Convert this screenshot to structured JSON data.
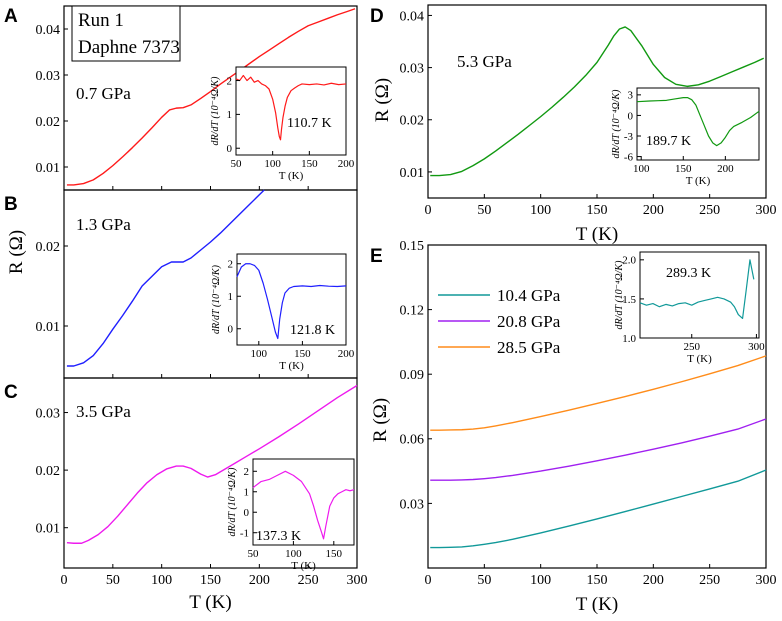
{
  "chart_data": [
    {
      "panel": "A",
      "type": "line",
      "color": "#ff1a1a",
      "legend": [
        "Run 1",
        "Daphne 7373"
      ],
      "pressure": "0.7 GPa",
      "xlim": [
        0,
        300
      ],
      "ylim": [
        0.005,
        0.045
      ],
      "yticks": [
        0.01,
        0.02,
        0.03,
        0.04
      ],
      "ytick_labels": [
        "0.01",
        "0.02",
        "0.03",
        "0.04"
      ],
      "x": [
        3,
        10,
        20,
        30,
        40,
        50,
        60,
        70,
        80,
        90,
        100,
        108,
        115,
        122,
        130,
        140,
        150,
        160,
        170,
        180,
        190,
        200,
        210,
        220,
        230,
        240,
        250,
        260,
        270,
        280,
        290,
        298
      ],
      "y": [
        0.0061,
        0.0061,
        0.0064,
        0.0072,
        0.0086,
        0.0103,
        0.0122,
        0.0142,
        0.0163,
        0.0185,
        0.0208,
        0.0224,
        0.0228,
        0.0229,
        0.0235,
        0.0249,
        0.0264,
        0.028,
        0.0295,
        0.031,
        0.0325,
        0.034,
        0.0354,
        0.0368,
        0.0382,
        0.0395,
        0.0407,
        0.0415,
        0.0423,
        0.0431,
        0.0438,
        0.0444
      ],
      "inset": {
        "xlim": [
          50,
          200
        ],
        "ylim": [
          -0.2,
          2.4
        ],
        "xticks": [
          50,
          100,
          150,
          200
        ],
        "yticks": [
          0,
          1,
          2
        ],
        "xtick_labels": [
          "50",
          "100",
          "150",
          "200"
        ],
        "ytick_labels": [
          "0",
          "1",
          "2"
        ],
        "x": [
          50,
          55,
          60,
          65,
          70,
          75,
          80,
          85,
          90,
          95,
          100,
          104,
          107,
          109,
          110.7,
          112,
          114,
          117,
          120,
          125,
          130,
          135,
          140,
          150,
          160,
          170,
          180,
          190,
          200
        ],
        "y": [
          2.05,
          2.0,
          2.15,
          2.0,
          2.1,
          1.95,
          2.0,
          1.9,
          1.85,
          1.75,
          1.45,
          1.05,
          0.6,
          0.35,
          0.25,
          0.55,
          0.9,
          1.25,
          1.5,
          1.7,
          1.78,
          1.85,
          1.9,
          1.88,
          1.9,
          1.87,
          1.92,
          1.88,
          1.9
        ],
        "annotation": "110.7 K",
        "ylabel": "dR/dT (10⁻⁴Ω/K)",
        "xlabel": "T (K)"
      }
    },
    {
      "panel": "B",
      "type": "line",
      "color": "#1f1fff",
      "pressure": "1.3 GPa",
      "xlim": [
        0,
        300
      ],
      "ylim": [
        0.0035,
        0.027
      ],
      "yticks": [
        0.01,
        0.02
      ],
      "ytick_labels": [
        "0.01",
        "0.02"
      ],
      "ylabel": "R (Ω)",
      "x": [
        3,
        10,
        20,
        30,
        40,
        50,
        60,
        70,
        80,
        90,
        100,
        110,
        116,
        122,
        130,
        140,
        150,
        160,
        170,
        180,
        190,
        200,
        205
      ],
      "y": [
        0.005,
        0.005,
        0.0054,
        0.0063,
        0.0078,
        0.0096,
        0.0113,
        0.0131,
        0.015,
        0.0162,
        0.0174,
        0.018,
        0.018,
        0.018,
        0.0185,
        0.0195,
        0.0205,
        0.0216,
        0.0228,
        0.024,
        0.0252,
        0.0264,
        0.027
      ],
      "inset": {
        "xlim": [
          75,
          200
        ],
        "ylim": [
          -0.5,
          2.3
        ],
        "xticks": [
          100,
          150,
          200
        ],
        "yticks": [
          0,
          1,
          2
        ],
        "xtick_labels": [
          "100",
          "150",
          "200"
        ],
        "ytick_labels": [
          "0",
          "1",
          "2"
        ],
        "x": [
          75,
          80,
          85,
          90,
          95,
          100,
          105,
          110,
          115,
          119,
          121.8,
          124,
          127,
          130,
          135,
          140,
          150,
          160,
          170,
          180,
          190,
          200
        ],
        "y": [
          1.6,
          1.9,
          2.0,
          2.0,
          1.95,
          1.8,
          1.4,
          0.9,
          0.35,
          -0.1,
          -0.3,
          0.3,
          0.8,
          1.1,
          1.25,
          1.3,
          1.32,
          1.3,
          1.33,
          1.31,
          1.3,
          1.32
        ],
        "annotation": "121.8 K",
        "ylabel": "dR/dT (10⁻⁴Ω/K)",
        "xlabel": "T (K)"
      }
    },
    {
      "panel": "C",
      "type": "line",
      "color": "#ee1aee",
      "pressure": "3.5 GPa",
      "xlim": [
        0,
        300
      ],
      "ylim": [
        0.003,
        0.036
      ],
      "xticks": [
        0,
        50,
        100,
        150,
        200,
        250,
        300
      ],
      "xtick_labels": [
        "0",
        "50",
        "100",
        "150",
        "200",
        "250",
        "300"
      ],
      "yticks": [
        0.01,
        0.02,
        0.03
      ],
      "ytick_labels": [
        "0.01",
        "0.02",
        "0.03"
      ],
      "xlabel": "T (K)",
      "x": [
        3,
        10,
        18,
        25,
        35,
        45,
        55,
        65,
        75,
        85,
        95,
        105,
        115,
        122,
        130,
        140,
        147,
        155,
        165,
        175,
        185,
        200,
        220,
        240,
        260,
        280,
        300
      ],
      "y": [
        0.0074,
        0.0073,
        0.0073,
        0.0078,
        0.0088,
        0.0102,
        0.012,
        0.014,
        0.016,
        0.0178,
        0.0192,
        0.0202,
        0.0207,
        0.0207,
        0.0203,
        0.0193,
        0.0188,
        0.0192,
        0.0202,
        0.0212,
        0.0222,
        0.0237,
        0.0258,
        0.028,
        0.0303,
        0.0326,
        0.0347
      ],
      "inset": {
        "xlim": [
          50,
          175
        ],
        "ylim": [
          -1.6,
          2.6
        ],
        "xticks": [
          50,
          100,
          150
        ],
        "yticks": [
          -1,
          0,
          1,
          2
        ],
        "xtick_labels": [
          "50",
          "100",
          "150"
        ],
        "ytick_labels": [
          "-1",
          "0",
          "1",
          "2"
        ],
        "x": [
          50,
          60,
          70,
          80,
          90,
          100,
          110,
          115,
          120,
          125,
          130,
          135,
          137.3,
          140,
          145,
          150,
          155,
          160,
          165,
          170,
          175
        ],
        "y": [
          1.2,
          1.5,
          1.6,
          1.8,
          2.0,
          1.8,
          1.5,
          1.2,
          0.9,
          0.3,
          -0.4,
          -1.0,
          -1.3,
          -0.7,
          0.3,
          0.7,
          0.9,
          1.0,
          1.1,
          1.05,
          1.1
        ],
        "annotation": "137.3 K",
        "ylabel": "dR/dT (10⁻⁴Ω/K)",
        "xlabel": "T (K)"
      }
    },
    {
      "panel": "D",
      "type": "line",
      "color": "#119911",
      "pressure": "5.3 GPa",
      "xlim": [
        0,
        300
      ],
      "ylim": [
        0.005,
        0.042
      ],
      "xticks": [
        0,
        50,
        100,
        150,
        200,
        250,
        300
      ],
      "xtick_labels": [
        "0",
        "50",
        "100",
        "150",
        "200",
        "250",
        "300"
      ],
      "yticks": [
        0.01,
        0.02,
        0.03,
        0.04
      ],
      "ytick_labels": [
        "0.01",
        "0.02",
        "0.03",
        "0.04"
      ],
      "xlabel": "T (K)",
      "ylabel": "R (Ω)",
      "x": [
        2,
        10,
        20,
        30,
        40,
        50,
        60,
        70,
        80,
        90,
        100,
        110,
        120,
        130,
        140,
        150,
        160,
        165,
        170,
        175,
        180,
        190,
        200,
        210,
        220,
        230,
        240,
        250,
        260,
        270,
        280,
        290,
        298
      ],
      "y": [
        0.0093,
        0.0093,
        0.0095,
        0.0101,
        0.0112,
        0.0125,
        0.014,
        0.0156,
        0.0172,
        0.0189,
        0.0206,
        0.0224,
        0.0243,
        0.0263,
        0.0285,
        0.031,
        0.0343,
        0.0361,
        0.0374,
        0.0378,
        0.0371,
        0.0341,
        0.0306,
        0.0281,
        0.0268,
        0.0264,
        0.0267,
        0.0274,
        0.0283,
        0.0292,
        0.0301,
        0.031,
        0.0318
      ],
      "inset": {
        "xlim": [
          95,
          240
        ],
        "ylim": [
          -6.5,
          4.0
        ],
        "xticks": [
          100,
          150,
          200
        ],
        "yticks": [
          -6,
          -3,
          0,
          3
        ],
        "xtick_labels": [
          "100",
          "150",
          "200"
        ],
        "ytick_labels": [
          "-6",
          "-3",
          "0",
          "3"
        ],
        "x": [
          95,
          110,
          120,
          130,
          140,
          150,
          155,
          160,
          165,
          170,
          175,
          180,
          185,
          189.7,
          195,
          200,
          205,
          210,
          220,
          230,
          240
        ],
        "y": [
          2.0,
          2.1,
          2.15,
          2.2,
          2.4,
          2.6,
          2.6,
          2.3,
          1.5,
          0.0,
          -1.5,
          -3.0,
          -4.0,
          -4.4,
          -4.0,
          -3.2,
          -2.2,
          -1.6,
          -1.0,
          -0.3,
          0.6
        ],
        "annotation": "189.7 K",
        "ylabel": "dR/dT (10⁻⁴Ω/K)",
        "xlabel": "T (K)"
      }
    },
    {
      "panel": "E",
      "type": "line",
      "xlim": [
        0,
        300
      ],
      "ylim": [
        0.0,
        0.15
      ],
      "xticks": [
        0,
        50,
        100,
        150,
        200,
        250,
        300
      ],
      "xtick_labels": [
        "0",
        "50",
        "100",
        "150",
        "200",
        "250",
        "300"
      ],
      "yticks": [
        0.03,
        0.06,
        0.09,
        0.12,
        0.15
      ],
      "ytick_labels": [
        "0.03",
        "0.06",
        "0.09",
        "0.12",
        "0.15"
      ],
      "xlabel": "T (K)",
      "ylabel": "R (Ω)",
      "x": [
        2,
        10,
        20,
        30,
        40,
        50,
        60,
        75,
        100,
        125,
        150,
        175,
        200,
        225,
        250,
        275,
        300
      ],
      "series": [
        {
          "name": "10.4 GPa",
          "color": "#119999",
          "values": [
            0.0095,
            0.0095,
            0.0096,
            0.0098,
            0.0103,
            0.011,
            0.0118,
            0.0133,
            0.0163,
            0.0195,
            0.0228,
            0.0262,
            0.0297,
            0.0332,
            0.0367,
            0.0403,
            0.0455
          ]
        },
        {
          "name": "20.8 GPa",
          "color": "#a020f0",
          "values": [
            0.0408,
            0.0408,
            0.0408,
            0.0409,
            0.0411,
            0.0415,
            0.042,
            0.043,
            0.045,
            0.0473,
            0.0498,
            0.0524,
            0.0552,
            0.0581,
            0.0612,
            0.0645,
            0.0692
          ]
        },
        {
          "name": "28.5 GPa",
          "color": "#ff8c1a",
          "values": [
            0.064,
            0.064,
            0.0641,
            0.0642,
            0.0645,
            0.0651,
            0.066,
            0.0675,
            0.0703,
            0.0733,
            0.0764,
            0.0796,
            0.083,
            0.0865,
            0.0902,
            0.094,
            0.0985
          ]
        }
      ],
      "inset": {
        "xlim": [
          210,
          302
        ],
        "ylim": [
          1.0,
          2.1
        ],
        "xticks": [
          250,
          300
        ],
        "yticks": [
          1.0,
          1.5,
          2.0
        ],
        "xtick_labels": [
          "250",
          "300"
        ],
        "ytick_labels": [
          "1.0",
          "1.5",
          "2.0"
        ],
        "x": [
          210,
          215,
          220,
          225,
          230,
          235,
          240,
          245,
          250,
          255,
          260,
          265,
          270,
          275,
          280,
          283,
          286,
          289.3,
          292,
          295,
          298
        ],
        "y": [
          1.45,
          1.42,
          1.44,
          1.4,
          1.43,
          1.41,
          1.44,
          1.45,
          1.42,
          1.46,
          1.48,
          1.5,
          1.52,
          1.5,
          1.46,
          1.4,
          1.3,
          1.25,
          1.6,
          2.0,
          1.75
        ],
        "annotation": "289.3 K",
        "ylabel": "dR/dT (10⁻⁴Ω/K)",
        "xlabel": "T (K)"
      }
    }
  ],
  "panel_labels": [
    "A",
    "B",
    "C",
    "D",
    "E"
  ]
}
